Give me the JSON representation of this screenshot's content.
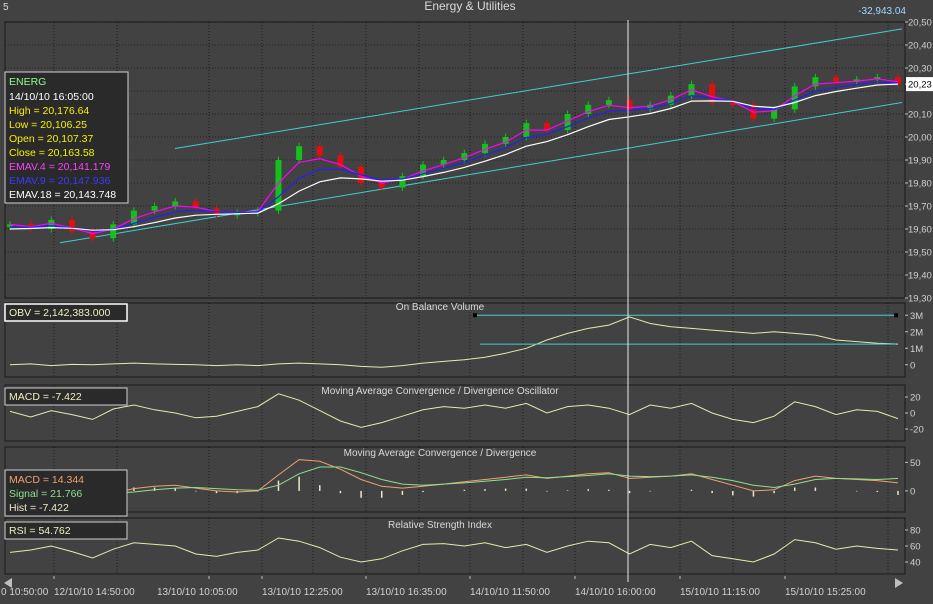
{
  "window": {
    "corner_number": "5",
    "title": "Energy & Utilities",
    "top_right_value": "-32,943.04"
  },
  "colors": {
    "background": "#424242",
    "grid": "#000000",
    "candle_up": "#13c11c",
    "candle_down": "#e01010",
    "ema4": "#ff00ff",
    "ema9": "#2020ff",
    "ema18": "#ffffff",
    "channel": "#3fd0d0",
    "indicator_line": "#e8e8b0",
    "macd_line": "#f0a070",
    "signal_line": "#90e090"
  },
  "price_panel": {
    "info": {
      "symbol": "ENERG",
      "datetime": "14/10/10 16:05:00",
      "high": "High  = 20,176.64",
      "low": "Low  = 20,106.25",
      "open": "Open = 20,107.37",
      "close": "Close = 20,163.58",
      "ema4": "EMAV.4 = 20,141.179",
      "ema9": "EMAV.9 = 20,147.936",
      "ema18": "EMAV.18 = 20,143.748"
    },
    "y_ticks": [
      "20,50",
      "20,40",
      "20,30",
      "20,23",
      "20,10",
      "20,00",
      "19,90",
      "19,80",
      "19,70",
      "19,60",
      "19,50",
      "19,40",
      "19,30"
    ],
    "current_value_label": "20,23"
  },
  "obv_panel": {
    "title": "On Balance Volume",
    "info": "OBV = 2,142,383.000",
    "y_ticks": [
      "3M",
      "2M",
      "1M",
      "0"
    ]
  },
  "macd_osc_panel": {
    "title": "Moving Average Convergence / Divergence Oscillator",
    "info": "MACD = -7.422",
    "y_ticks": [
      "20",
      "0",
      "-20"
    ]
  },
  "macd_panel": {
    "title": "Moving Average Convergence / Divergence",
    "info_macd": "MACD = 14.344",
    "info_signal": "Signal = 21.766",
    "info_hist": "Hist = -7.422",
    "y_ticks": [
      "50",
      "0"
    ]
  },
  "rsi_panel": {
    "title": "Relative Strength Index",
    "info": "RSI = 54.762",
    "y_ticks": [
      "80",
      "60",
      "40"
    ]
  },
  "x_axis": {
    "labels": [
      "0 10:50:00",
      "12/10/10 14:50:00",
      "13/10/10 10:05:00",
      "13/10/10 12:25:00",
      "13/10/10 16:35:00",
      "14/10/10 11:50:00",
      "14/10/10 16:00:00",
      "15/10/10 11:15:00",
      "15/10/10 15:25:00"
    ]
  },
  "chart_data": [
    {
      "type": "candlestick",
      "title": "Energy & Utilities",
      "series": [
        {
          "name": "ENERG",
          "close": [
            19620,
            19600,
            19640,
            19590,
            19560,
            19620,
            19680,
            19700,
            19720,
            19690,
            19660,
            19670,
            19680,
            19900,
            19960,
            19920,
            19870,
            19800,
            19780,
            19830,
            19880,
            19900,
            19930,
            19970,
            20000,
            20060,
            20030,
            20100,
            20140,
            20160,
            20120,
            20140,
            20180,
            20230,
            20150,
            20140,
            20080,
            20120,
            20220,
            20260,
            20240,
            20250,
            20260,
            20230
          ]
        },
        {
          "name": "EMAV.4",
          "values": [
            19620,
            19610,
            19625,
            19605,
            19580,
            19600,
            19645,
            19675,
            19700,
            19695,
            19675,
            19672,
            19676,
            19800,
            19890,
            19905,
            19880,
            19830,
            19800,
            19816,
            19852,
            19880,
            19910,
            19946,
            19978,
            20030,
            20030,
            20070,
            20110,
            20138,
            20128,
            20134,
            20162,
            20205,
            20175,
            20155,
            20108,
            20114,
            20180,
            20230,
            20236,
            20243,
            20253,
            20240
          ]
        },
        {
          "name": "EMAV.9",
          "values": [
            19610,
            19608,
            19615,
            19605,
            19590,
            19598,
            19625,
            19650,
            19675,
            19682,
            19675,
            19672,
            19674,
            19740,
            19820,
            19860,
            19860,
            19835,
            19812,
            19818,
            19840,
            19864,
            19890,
            19922,
            19954,
            19998,
            20012,
            20045,
            20082,
            20112,
            20115,
            20124,
            20146,
            20180,
            20168,
            20158,
            20124,
            20120,
            20160,
            20200,
            20216,
            20228,
            20240,
            20236
          ]
        },
        {
          "name": "EMAV.18",
          "values": [
            19600,
            19602,
            19606,
            19603,
            19595,
            19597,
            19610,
            19628,
            19648,
            19660,
            19664,
            19666,
            19669,
            19710,
            19765,
            19805,
            19822,
            19818,
            19808,
            19812,
            19828,
            19846,
            19868,
            19895,
            19924,
            19960,
            19980,
            20010,
            20045,
            20076,
            20088,
            20102,
            20124,
            20156,
            20157,
            20155,
            20134,
            20128,
            20150,
            20180,
            20198,
            20212,
            20226,
            20230
          ]
        }
      ],
      "ylim": [
        19300,
        20500
      ]
    },
    {
      "type": "line",
      "title": "On Balance Volume",
      "series": [
        {
          "name": "OBV",
          "values": [
            0.0,
            0.05,
            -0.05,
            0.02,
            0.0,
            0.05,
            0.1,
            0.05,
            0.02,
            0.0,
            -0.05,
            0.0,
            -0.05,
            0.05,
            0.1,
            0.05,
            0.0,
            -0.1,
            -0.15,
            -0.05,
            0.1,
            0.2,
            0.3,
            0.45,
            0.7,
            1.0,
            1.5,
            1.9,
            2.2,
            2.4,
            2.9,
            2.5,
            2.3,
            2.2,
            2.1,
            2.0,
            1.9,
            2.0,
            1.9,
            1.8,
            1.5,
            1.4,
            1.3,
            1.25
          ]
        }
      ],
      "ylim": [
        -0.5,
        3.5
      ]
    },
    {
      "type": "line",
      "title": "Moving Average Convergence / Divergence Oscillator",
      "series": [
        {
          "name": "MACD",
          "values": [
            2,
            -5,
            3,
            -2,
            -8,
            5,
            10,
            4,
            0,
            -6,
            -4,
            2,
            8,
            24,
            16,
            3,
            -10,
            -18,
            -12,
            -4,
            4,
            8,
            6,
            10,
            6,
            12,
            0,
            8,
            10,
            6,
            -2,
            10,
            6,
            12,
            0,
            -8,
            -12,
            -4,
            14,
            8,
            -2,
            4,
            2,
            -7
          ]
        }
      ],
      "ylim": [
        -30,
        30
      ]
    },
    {
      "type": "line",
      "title": "Moving Average Convergence / Divergence",
      "series": [
        {
          "name": "MACD",
          "values": [
            -2,
            -4,
            -2,
            -5,
            -8,
            -4,
            4,
            8,
            10,
            5,
            0,
            -2,
            0,
            28,
            55,
            52,
            38,
            20,
            8,
            5,
            8,
            12,
            16,
            20,
            24,
            28,
            22,
            26,
            30,
            32,
            22,
            24,
            26,
            30,
            20,
            10,
            0,
            2,
            18,
            26,
            22,
            20,
            18,
            14
          ]
        },
        {
          "name": "Signal",
          "values": [
            0,
            -1,
            -2,
            -3,
            -4,
            -4,
            -2,
            2,
            5,
            6,
            4,
            2,
            1,
            10,
            30,
            42,
            42,
            32,
            20,
            12,
            10,
            12,
            14,
            17,
            20,
            24,
            23,
            25,
            27,
            30,
            26,
            25,
            26,
            28,
            24,
            18,
            10,
            6,
            12,
            20,
            22,
            21,
            20,
            22
          ]
        },
        {
          "name": "Hist",
          "values": [
            -2,
            -3,
            0,
            -2,
            -4,
            0,
            6,
            6,
            5,
            -1,
            -4,
            -4,
            -1,
            18,
            25,
            10,
            -4,
            -12,
            -12,
            -7,
            -2,
            0,
            2,
            3,
            4,
            4,
            -1,
            1,
            3,
            2,
            -4,
            -1,
            0,
            2,
            -4,
            -8,
            -10,
            -4,
            6,
            6,
            0,
            -1,
            -2,
            -7
          ]
        }
      ],
      "ylim": [
        -30,
        70
      ]
    },
    {
      "type": "line",
      "title": "Relative Strength Index",
      "series": [
        {
          "name": "RSI",
          "values": [
            52,
            55,
            60,
            53,
            45,
            56,
            64,
            62,
            60,
            50,
            47,
            52,
            55,
            70,
            66,
            58,
            46,
            40,
            44,
            54,
            62,
            63,
            60,
            64,
            58,
            62,
            52,
            60,
            66,
            64,
            50,
            62,
            58,
            66,
            48,
            44,
            40,
            50,
            68,
            64,
            56,
            60,
            57,
            55
          ]
        }
      ],
      "ylim": [
        30,
        90
      ]
    }
  ]
}
